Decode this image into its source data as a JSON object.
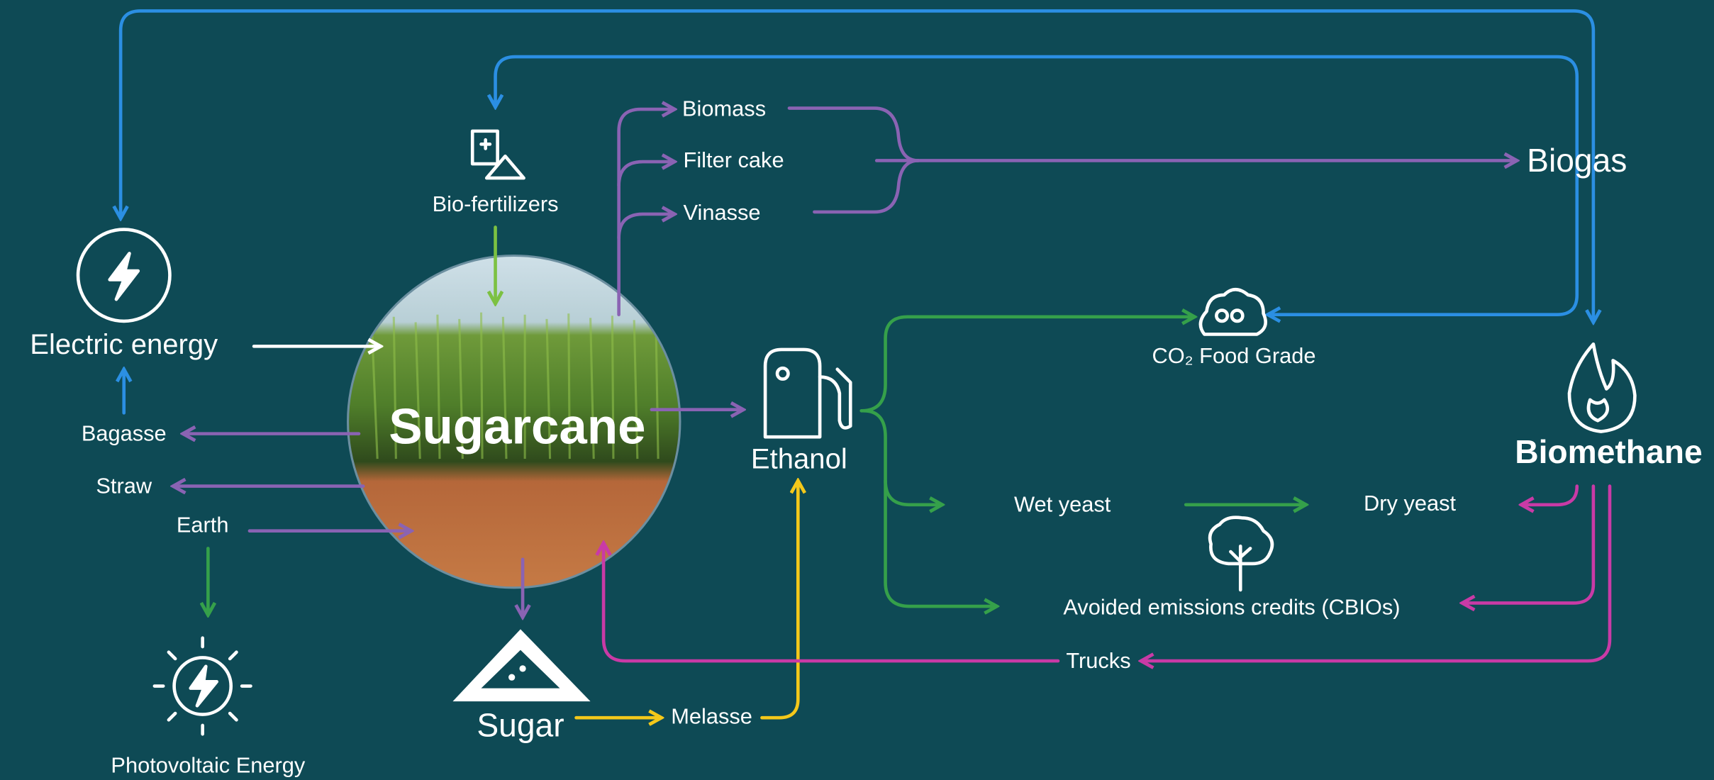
{
  "nodes": {
    "electric_energy": "Electric energy",
    "bagasse": "Bagasse",
    "straw": "Straw",
    "earth": "Earth",
    "photovoltaic": "Photovoltaic Energy",
    "bio_fertilizers": "Bio-fertilizers",
    "sugarcane": "Sugarcane",
    "sugar": "Sugar",
    "melasse": "Melasse",
    "biomass": "Biomass",
    "filter_cake": "Filter cake",
    "vinasse": "Vinasse",
    "biogas": "Biogas",
    "ethanol": "Ethanol",
    "co2": "CO₂ Food Grade",
    "biomethane": "Biomethane",
    "wet_yeast": "Wet yeast",
    "dry_yeast": "Dry yeast",
    "cbios": "Avoided emissions credits (CBIOs)",
    "trucks": "Trucks"
  }
}
